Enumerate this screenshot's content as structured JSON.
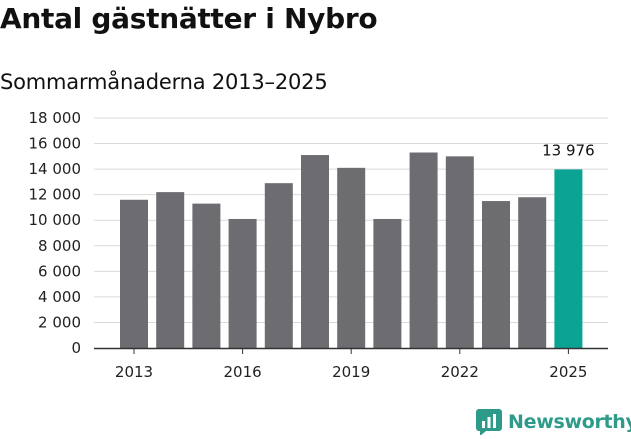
{
  "title": "Antal gästnätter i Nybro",
  "subtitle": "Sommarmånaderna 2013–2025",
  "brand": "Newsworthy",
  "colors": {
    "bar": "#6d6c71",
    "highlight": "#0aa394",
    "grid": "#d9d9d9",
    "brand": "#2e9b8a"
  },
  "chart_data": {
    "type": "bar",
    "title": "Antal gästnätter i Nybro",
    "subtitle": "Sommarmånaderna 2013–2025",
    "categories": [
      "2013",
      "2014",
      "2015",
      "2016",
      "2017",
      "2018",
      "2019",
      "2020",
      "2021",
      "2022",
      "2023",
      "2024",
      "2025"
    ],
    "values": [
      11600,
      12200,
      11300,
      10100,
      12900,
      15100,
      14100,
      10100,
      15300,
      15000,
      11500,
      11800,
      13976
    ],
    "x_tick_labels": [
      "2013",
      "2016",
      "2019",
      "2022",
      "2025"
    ],
    "y_ticks": [
      0,
      2000,
      4000,
      6000,
      8000,
      10000,
      12000,
      14000,
      16000,
      18000
    ],
    "y_tick_labels": [
      "0",
      "2 000",
      "4 000",
      "6 000",
      "8 000",
      "10 000",
      "12 000",
      "14 000",
      "16 000",
      "18 000"
    ],
    "ylim": [
      0,
      18000
    ],
    "highlight_category": "2025",
    "highlight_label": "13 976",
    "xlabel": "",
    "ylabel": "",
    "grid": true,
    "legend": "none"
  }
}
